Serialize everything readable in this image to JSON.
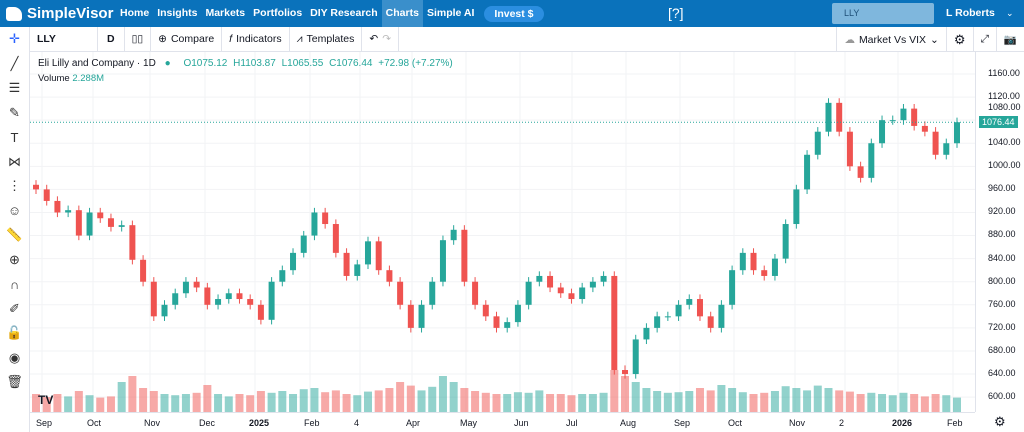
{
  "nav": {
    "brand": "SimpleVisor",
    "items": [
      "Home",
      "Insights",
      "Markets",
      "Portfolios",
      "DIY Research",
      "Charts",
      "Simple AI"
    ],
    "active": "Charts",
    "invest": "Invest $",
    "search_value": "LLY",
    "user": "L Roberts"
  },
  "toolbar": {
    "symbol": "LLY",
    "interval": "D",
    "compare": "Compare",
    "indicators": "Indicators",
    "templates": "Templates",
    "layout": "Market Vs VIX"
  },
  "legend": {
    "name": "Eli Lilly and Company · 1D",
    "open": "O1075.12",
    "high": "H1103.87",
    "low": "L1065.55",
    "close": "C1076.44",
    "change": "+72.98 (+7.27%)",
    "volume_label": "Volume",
    "volume_value": "2.288M"
  },
  "price_axis": [
    "1160.00",
    "1120.00",
    "1080.00",
    "1040.00",
    "1000.00",
    "960.00",
    "920.00",
    "880.00",
    "840.00",
    "800.00",
    "760.00",
    "720.00",
    "680.00",
    "640.00",
    "600.00"
  ],
  "current_price": "1076.44",
  "time_axis": [
    "Sep",
    "Oct",
    "Nov",
    "Dec",
    "2025",
    "Feb",
    "4",
    "Apr",
    "May",
    "Jun",
    "Jul",
    "Aug",
    "Sep",
    "Oct",
    "Nov",
    "2",
    "2026",
    "Feb"
  ],
  "colors": {
    "up": "#26a69a",
    "down": "#ef5350",
    "nav": "#0a72bb"
  },
  "chart_data": {
    "type": "candlestick",
    "ylim": [
      580,
      1180
    ],
    "closes": [
      960,
      940,
      920,
      924,
      880,
      920,
      910,
      895,
      898,
      838,
      800,
      740,
      760,
      780,
      800,
      790,
      760,
      770,
      780,
      770,
      760,
      734,
      800,
      820,
      850,
      880,
      920,
      900,
      850,
      810,
      830,
      870,
      820,
      800,
      760,
      720,
      760,
      800,
      872,
      890,
      800,
      760,
      740,
      720,
      730,
      760,
      800,
      810,
      790,
      780,
      770,
      790,
      800,
      810,
      647,
      640,
      700,
      720,
      740,
      740,
      760,
      770,
      740,
      720,
      760,
      820,
      850,
      820,
      810,
      840,
      900,
      960,
      1020,
      1060,
      1110,
      1060,
      1000,
      980,
      1040,
      1080,
      1080,
      1100,
      1070,
      1060,
      1020,
      1040,
      1076.44
    ],
    "volumes": [
      3,
      2.5,
      3,
      2.6,
      3.5,
      2.8,
      2.4,
      2.6,
      5,
      6,
      4,
      3.5,
      3,
      2.8,
      3,
      3.2,
      4.5,
      3,
      2.6,
      3,
      2.8,
      3.5,
      3.2,
      3.5,
      3,
      3.8,
      4,
      3.3,
      3.6,
      3,
      2.8,
      3.4,
      3.6,
      4,
      5,
      4.4,
      3.6,
      4.2,
      6,
      5,
      4,
      3.5,
      3.2,
      3,
      3,
      3.3,
      3.2,
      3.6,
      3,
      3,
      2.8,
      3,
      3,
      3.2,
      7,
      6,
      5,
      4,
      3.5,
      3.2,
      3.3,
      3.5,
      4,
      3.6,
      4.5,
      4,
      3.3,
      3,
      3.2,
      3.5,
      4.3,
      4,
      3.6,
      4.4,
      4,
      3.6,
      3.4,
      3,
      3.2,
      3,
      2.8,
      3.2,
      3,
      2.6,
      3,
      2.8,
      2.4
    ]
  }
}
